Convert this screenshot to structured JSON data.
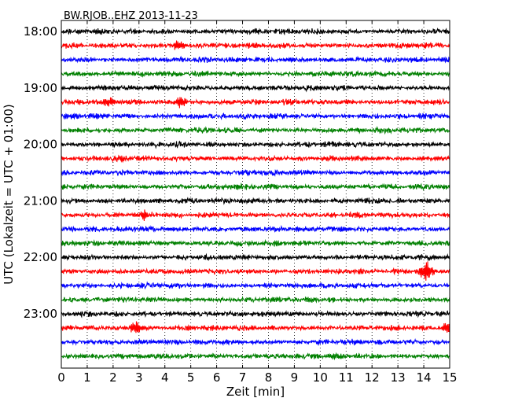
{
  "chart_data": {
    "type": "line",
    "title": "BW.RJOB..EHZ 2013-11-23",
    "xlabel": "Zeit  [min]",
    "ylabel": "UTC (Lokalzeit = UTC + 01:00)",
    "xlim": [
      0,
      15
    ],
    "x_ticks": [
      "0",
      "1",
      "2",
      "3",
      "4",
      "5",
      "6",
      "7",
      "8",
      "9",
      "10",
      "11",
      "12",
      "13",
      "14",
      "15"
    ],
    "y_tick_labels": [
      "18:00",
      "19:00",
      "20:00",
      "21:00",
      "22:00",
      "23:00"
    ],
    "trace_interval_minutes": 15,
    "start_time": "18:00",
    "trace_count": 24,
    "trace_colors": [
      "#000000",
      "#ff0000",
      "#0000ff",
      "#008000"
    ],
    "vertical_grid": "dotted",
    "events": [
      {
        "trace": 1,
        "minute": 4.5,
        "amplitude": 1.2
      },
      {
        "trace": 5,
        "minute": 4.6,
        "amplitude": 1.5
      },
      {
        "trace": 5,
        "minute": 1.8,
        "amplitude": 1.0
      },
      {
        "trace": 13,
        "minute": 3.2,
        "amplitude": 1.0
      },
      {
        "trace": 17,
        "minute": 14.1,
        "amplitude": 2.4
      },
      {
        "trace": 21,
        "minute": 2.9,
        "amplitude": 1.6
      },
      {
        "trace": 21,
        "minute": 14.9,
        "amplitude": 1.3
      }
    ]
  }
}
